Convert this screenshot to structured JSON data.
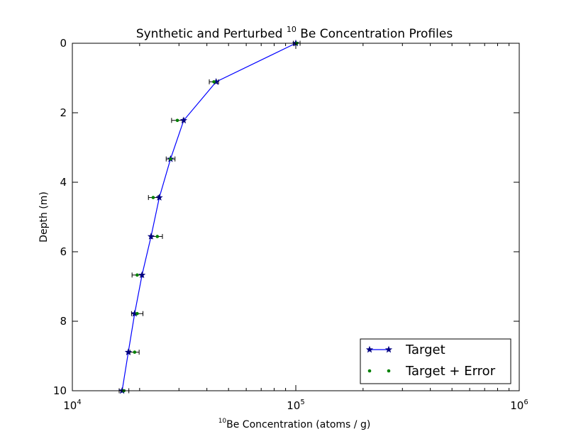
{
  "chart_data": {
    "type": "line",
    "title_prefix": "Synthetic and Perturbed ",
    "title_sup": "10",
    "title_suffix": " Be Concentration Profiles",
    "xlabel_sup": "10",
    "xlabel_text": "Be Concentration (atoms / g)",
    "ylabel": "Depth (m)",
    "x_scale": "log",
    "xlim": [
      10000,
      1000000
    ],
    "ylim": [
      10,
      0
    ],
    "y_inverted": true,
    "x_ticks": [
      {
        "value": 10000,
        "base": "10",
        "exp": "4"
      },
      {
        "value": 100000,
        "base": "10",
        "exp": "5"
      },
      {
        "value": 1000000,
        "base": "10",
        "exp": "6"
      }
    ],
    "y_ticks": [
      {
        "value": 0,
        "label": "0"
      },
      {
        "value": 2,
        "label": "2"
      },
      {
        "value": 4,
        "label": "4"
      },
      {
        "value": 6,
        "label": "6"
      },
      {
        "value": 8,
        "label": "8"
      },
      {
        "value": 10,
        "label": "10"
      }
    ],
    "grid": false,
    "legend_position": "lower-right",
    "series": [
      {
        "name": "Target",
        "style": "line-star",
        "color": "#0000ff",
        "marker_color": "#000080",
        "depth": [
          0,
          1.11,
          2.22,
          3.33,
          4.44,
          5.56,
          6.67,
          7.78,
          8.89,
          10
        ],
        "conc": [
          100000,
          44000,
          31500,
          27500,
          24500,
          22500,
          20500,
          19000,
          17800,
          16700
        ]
      },
      {
        "name": "Target + Error",
        "style": "points",
        "color": "#008000",
        "error_color": "#000000",
        "depth": [
          0,
          1.11,
          2.22,
          3.33,
          4.44,
          5.56,
          6.67,
          7.78,
          8.89,
          10
        ],
        "conc": [
          101000,
          43000,
          29500,
          27500,
          23000,
          24000,
          19500,
          19500,
          19000,
          17000
        ],
        "err_low": [
          97500,
          41000,
          27800,
          26300,
          21900,
          22600,
          18500,
          18400,
          18100,
          16200
        ],
        "err_high": [
          104500,
          45100,
          31300,
          28800,
          24200,
          25300,
          20600,
          20700,
          19900,
          17900
        ]
      }
    ]
  }
}
